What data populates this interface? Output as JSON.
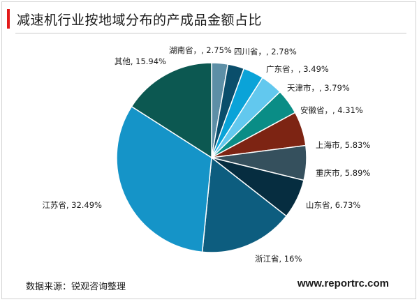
{
  "page": {
    "title": "减速机行业按地域分布的产成品金额占比",
    "source": "数据来源：锐观咨询整理",
    "website": "www.reportrc.com"
  },
  "chart_data": {
    "type": "pie",
    "title": "减速机行业按地域分布的产成品金额占比",
    "slices": [
      {
        "label": "湖南省，, 2.75%",
        "value": 2.75,
        "color": "#5d8fa6"
      },
      {
        "label": "四川省，, 2.78%",
        "value": 2.78,
        "color": "#0a4e6b"
      },
      {
        "label": "广东省，, 3.49%",
        "value": 3.49,
        "color": "#0aa3d8"
      },
      {
        "label": "天津市，, 3.79%",
        "value": 3.79,
        "color": "#62c8ee"
      },
      {
        "label": "安徽省，, 4.31%",
        "value": 4.31,
        "color": "#0a8d86"
      },
      {
        "label": "上海市, 5.83%",
        "value": 5.83,
        "color": "#7d2413"
      },
      {
        "label": "重庆市, 5.89%",
        "value": 5.89,
        "color": "#35505d"
      },
      {
        "label": "山东省, 6.73%",
        "value": 6.73,
        "color": "#062d40"
      },
      {
        "label": "浙江省, 16%",
        "value": 16.0,
        "color": "#0d5d7f"
      },
      {
        "label": "江苏省, 32.49%",
        "value": 32.49,
        "color": "#1594c8"
      },
      {
        "label": "其他, 15.94%",
        "value": 15.94,
        "color": "#0c5851"
      }
    ]
  }
}
